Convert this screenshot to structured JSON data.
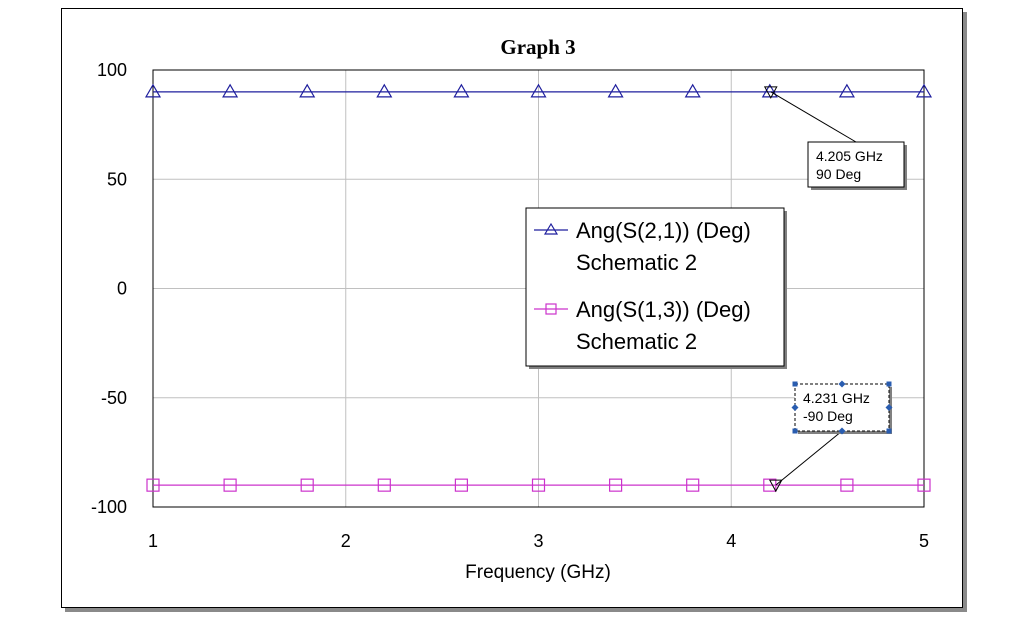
{
  "chart_data": {
    "type": "line",
    "title": "Graph 3",
    "xlabel": "Frequency (GHz)",
    "ylabel": "",
    "xlim": [
      1,
      5
    ],
    "ylim": [
      -100,
      100
    ],
    "x_ticks": [
      1,
      2,
      3,
      4,
      5
    ],
    "y_ticks": [
      100,
      50,
      0,
      -50,
      -100
    ],
    "grid": true,
    "legend_position": "center-right",
    "series": [
      {
        "name": "Ang(S(2,1)) (Deg)",
        "source": "Schematic 2",
        "color": "#1f1f9e",
        "marker": "triangle-up",
        "x": [
          1,
          1.4,
          1.8,
          2.2,
          2.6,
          3.0,
          3.4,
          3.8,
          4.2,
          4.6,
          5.0
        ],
        "values": [
          90,
          90,
          90,
          90,
          90,
          90,
          90,
          90,
          90,
          90,
          90
        ]
      },
      {
        "name": "Ang(S(1,3)) (Deg)",
        "source": "Schematic 2",
        "color": "#cc33cc",
        "marker": "square",
        "x": [
          1,
          1.4,
          1.8,
          2.2,
          2.6,
          3.0,
          3.4,
          3.8,
          4.2,
          4.6,
          5.0
        ],
        "values": [
          -90,
          -90,
          -90,
          -90,
          -90,
          -90,
          -90,
          -90,
          -90,
          -90,
          -90
        ]
      }
    ],
    "annotations": [
      {
        "x": 4.205,
        "y": 90,
        "line1": "4.205 GHz",
        "line2": "90 Deg",
        "selected": false
      },
      {
        "x": 4.231,
        "y": -90,
        "line1": "4.231 GHz",
        "line2": "-90 Deg",
        "selected": true
      }
    ]
  }
}
